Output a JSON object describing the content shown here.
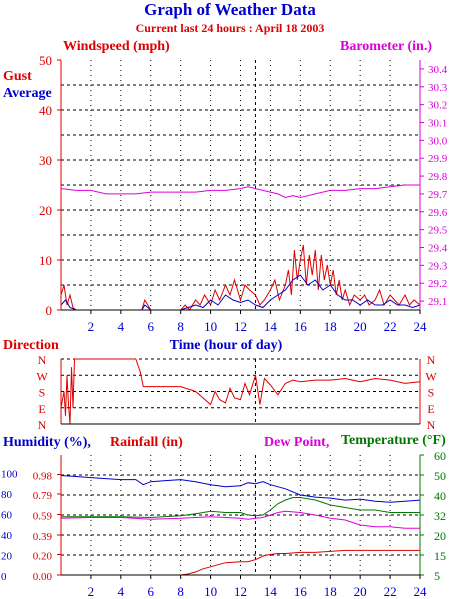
{
  "title": "Graph of Weather Data",
  "subtitle": "Current last 24 hours : April 18 2003",
  "colors": {
    "red": "#dd0000",
    "blue": "#0000cc",
    "magenta": "#dd00dd",
    "green": "#007700",
    "axis": "#000000"
  },
  "chart_data": [
    {
      "type": "line",
      "labels": {
        "left_title": "Windspeed (mph)",
        "right_title": "Barometer (in.)",
        "gust": "Gust",
        "average": "Average",
        "xlabel": "Time (hour of day)"
      },
      "x_ticks": [
        "2",
        "4",
        "6",
        "8",
        "10",
        "12",
        "14",
        "16",
        "18",
        "20",
        "22",
        "24"
      ],
      "xlim": [
        0,
        24
      ],
      "marker_hour": 13,
      "ylim": [
        0,
        50
      ],
      "y_ticks": [
        "0",
        "10",
        "20",
        "30",
        "40",
        "50"
      ],
      "y2lim": [
        29.05,
        30.45
      ],
      "y2_ticks": [
        "29.1",
        "29.2",
        "29.3",
        "29.4",
        "29.5",
        "29.6",
        "29.7",
        "29.8",
        "29.9",
        "30.0",
        "30.1",
        "30.2",
        "30.3",
        "30.4"
      ],
      "grid": true,
      "series": [
        {
          "name": "Barometer",
          "color": "#dd00dd",
          "x": [
            0,
            1,
            2,
            3,
            4,
            5,
            6,
            7,
            8,
            9,
            10,
            11,
            12,
            12.5,
            13,
            13.5,
            14,
            14.5,
            15,
            15.5,
            16,
            16.5,
            17,
            18,
            19,
            20,
            21,
            22,
            23,
            24
          ],
          "y": [
            29.73,
            29.72,
            29.72,
            29.7,
            29.7,
            29.7,
            29.71,
            29.71,
            29.71,
            29.71,
            29.72,
            29.72,
            29.73,
            29.74,
            29.73,
            29.72,
            29.71,
            29.7,
            29.68,
            29.69,
            29.68,
            29.69,
            29.7,
            29.72,
            29.72,
            29.73,
            29.73,
            29.74,
            29.75,
            29.75
          ]
        },
        {
          "name": "Gust",
          "color": "#dd0000",
          "x": [
            0,
            0.2,
            0.4,
            0.6,
            0.8,
            1,
            1.5,
            2,
            3,
            4,
            5,
            5.4,
            5.6,
            6,
            7,
            8,
            8.3,
            8.6,
            9,
            9.3,
            9.6,
            10,
            10.3,
            10.6,
            11,
            11.3,
            11.6,
            12,
            12.3,
            12.6,
            13,
            13.3,
            13.6,
            14,
            14.3,
            14.6,
            15,
            15.2,
            15.4,
            15.6,
            15.8,
            16,
            16.2,
            16.4,
            16.6,
            16.8,
            17,
            17.2,
            17.4,
            17.6,
            17.8,
            18,
            18.2,
            18.4,
            18.6,
            18.8,
            19,
            19.3,
            19.6,
            20,
            20.3,
            20.6,
            21,
            21.3,
            21.6,
            22,
            22.3,
            22.6,
            23,
            23.3,
            23.6,
            24
          ],
          "y": [
            3,
            5,
            1,
            3,
            0.5,
            0,
            0,
            0,
            0,
            0,
            0,
            0,
            2,
            0,
            0,
            0,
            1,
            0,
            2,
            1,
            3,
            1,
            4,
            2,
            5,
            3,
            6,
            2,
            5,
            4,
            3,
            1,
            2,
            4,
            6,
            2,
            5,
            8,
            3,
            12,
            6,
            10,
            13,
            5,
            11,
            7,
            12,
            4,
            11,
            6,
            9,
            5,
            8,
            3,
            6,
            2,
            4,
            1,
            3,
            2,
            3,
            1,
            2,
            4,
            1,
            3,
            2,
            1,
            3,
            1,
            2,
            1
          ]
        },
        {
          "name": "Average",
          "color": "#0000cc",
          "x": [
            0,
            0.3,
            0.6,
            1,
            2,
            4,
            5.4,
            5.6,
            6,
            8,
            8.5,
            9,
            9.5,
            10,
            10.5,
            11,
            11.5,
            12,
            12.5,
            13,
            13.5,
            14,
            14.5,
            15,
            15.5,
            16,
            16.5,
            17,
            17.5,
            18,
            18.5,
            19,
            19.5,
            20,
            20.5,
            21,
            21.5,
            22,
            22.5,
            23,
            23.5,
            24
          ],
          "y": [
            1,
            2,
            0.5,
            0,
            0,
            0,
            0,
            1,
            0,
            0,
            0.5,
            1,
            0.5,
            2,
            1,
            3,
            2,
            1.5,
            2,
            1,
            0.5,
            2,
            3,
            4,
            6,
            7,
            5,
            6,
            4,
            5,
            3,
            2,
            2,
            1,
            2,
            1,
            1,
            2,
            1,
            1,
            0.5,
            1
          ]
        }
      ]
    },
    {
      "type": "line",
      "labels": {
        "title": "Direction"
      },
      "xlim": [
        0,
        24
      ],
      "marker_hour": 13,
      "ylim": [
        0,
        4
      ],
      "y_ticks": [
        "N",
        "E",
        "S",
        "W",
        "N"
      ],
      "grid": true,
      "series": [
        {
          "name": "Direction",
          "color": "#dd0000",
          "x": [
            0,
            0.2,
            0.3,
            0.4,
            0.5,
            0.6,
            0.7,
            0.8,
            0.9,
            1,
            3,
            5,
            5.3,
            5.5,
            6,
            7,
            8,
            9,
            9.5,
            10,
            10.3,
            10.6,
            11,
            11.3,
            11.6,
            12,
            12.3,
            12.6,
            13,
            13.3,
            13.6,
            14,
            14.5,
            15,
            15.5,
            16,
            17,
            18,
            19,
            20,
            21,
            22,
            23,
            24
          ],
          "y": [
            1,
            2,
            0.5,
            3,
            1.2,
            0,
            3.5,
            1,
            4,
            4,
            4,
            4,
            3.2,
            2.3,
            2.3,
            2.3,
            2.3,
            2,
            1.6,
            1.2,
            2,
            1.5,
            1.3,
            2.2,
            1.6,
            1.5,
            2.5,
            1.8,
            3,
            1.2,
            2.8,
            2.4,
            1.8,
            2.5,
            2.7,
            2.6,
            2.7,
            2.7,
            2.8,
            2.6,
            2.8,
            2.7,
            2.5,
            2.6
          ]
        }
      ]
    },
    {
      "type": "line",
      "labels": {
        "humidity": "Humidity (%),",
        "rainfall": "Rainfall (in)",
        "dewpoint": "Dew Point,",
        "temperature": "Temperature (°F)"
      },
      "xlim": [
        0,
        24
      ],
      "marker_hour": 13,
      "humidity_ticks": [
        "0",
        "20",
        "40",
        "60",
        "80",
        "100"
      ],
      "humidity_lim": [
        0,
        117
      ],
      "rain_ticks": [
        "0.00",
        "0.20",
        "0.39",
        "0.59",
        "0.79",
        "0.98"
      ],
      "rain_lim": [
        0,
        1.17
      ],
      "temp_ticks": [
        "5",
        "15",
        "20",
        "32",
        "40",
        "50",
        "60"
      ],
      "grid": true,
      "series": [
        {
          "name": "Humidity",
          "color": "#0000cc",
          "x": [
            0,
            1,
            2,
            3,
            4,
            5,
            5.5,
            6,
            7,
            8,
            9,
            10,
            11,
            12,
            12.5,
            13,
            13.5,
            14,
            15,
            16,
            17,
            18,
            19,
            20,
            21,
            22,
            23,
            24
          ],
          "y": [
            97,
            96,
            95,
            94,
            93,
            93,
            88,
            91,
            92,
            93,
            91,
            88,
            86,
            87,
            90,
            89,
            91,
            88,
            84,
            78,
            76,
            75,
            73,
            74,
            72,
            71,
            72,
            73
          ]
        },
        {
          "name": "Dew Point",
          "color": "#dd00dd",
          "x": [
            0,
            2,
            4,
            6,
            8,
            9,
            10,
            11,
            12,
            12.5,
            13,
            13.5,
            14,
            14.5,
            15,
            16,
            17,
            18,
            19,
            20,
            21,
            22,
            23,
            24
          ],
          "y": [
            30,
            30.5,
            30.5,
            29.5,
            30,
            30.5,
            31,
            30.5,
            30,
            29.5,
            30,
            30.5,
            32,
            33,
            33.5,
            33,
            32,
            30,
            29,
            26,
            25,
            25,
            24,
            24
          ]
        },
        {
          "name": "Temperature",
          "color": "#007700",
          "x": [
            0,
            2,
            4,
            6,
            8,
            9,
            10,
            11,
            12,
            12.5,
            13,
            13.5,
            14,
            14.5,
            15,
            15.5,
            16,
            17,
            18,
            19,
            20,
            21,
            22,
            23,
            24
          ],
          "y": [
            31,
            31,
            31,
            30.5,
            31.5,
            32.5,
            33.5,
            33,
            33,
            32,
            31.5,
            32,
            34,
            36.5,
            38,
            39,
            39,
            38,
            36,
            35,
            34,
            34,
            33,
            33,
            33
          ]
        },
        {
          "name": "Rainfall",
          "color": "#dd0000",
          "x": [
            0,
            8,
            8.5,
            9,
            9.5,
            10,
            10.5,
            11,
            12,
            12.5,
            13,
            13.3,
            13.6,
            14,
            14.5,
            15,
            16,
            17,
            18,
            19,
            20,
            21,
            22,
            23,
            24
          ],
          "y": [
            0,
            0,
            0.01,
            0.03,
            0.06,
            0.08,
            0.1,
            0.12,
            0.13,
            0.13,
            0.15,
            0.17,
            0.19,
            0.2,
            0.21,
            0.21,
            0.22,
            0.22,
            0.23,
            0.24,
            0.24,
            0.24,
            0.24,
            0.24,
            0.24
          ]
        }
      ]
    }
  ]
}
